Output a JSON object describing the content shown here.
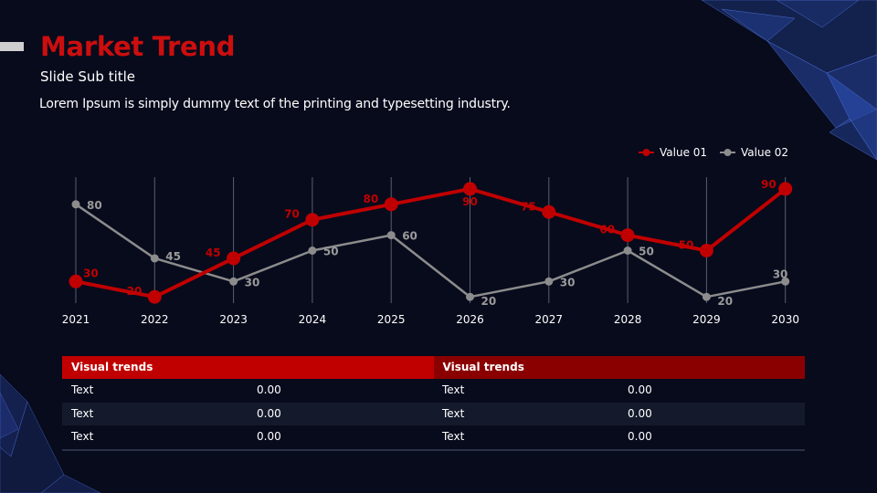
{
  "slide": {
    "title": "Market Trend",
    "subtitle": "Slide Sub title",
    "description": "Lorem Ipsum is simply dummy text of the printing and typesetting industry."
  },
  "colors": {
    "background": "#070b1c",
    "series1": "#c00000",
    "series2": "#8c8c8c",
    "title": "#cc0e0e"
  },
  "chart_data": {
    "type": "line",
    "categories": [
      "2021",
      "2022",
      "2023",
      "2024",
      "2025",
      "2026",
      "2027",
      "2028",
      "2029",
      "2030"
    ],
    "series": [
      {
        "name": "Value 01",
        "values": [
          30,
          20,
          45,
          70,
          80,
          90,
          75,
          60,
          50,
          90
        ],
        "color": "#c00000"
      },
      {
        "name": "Value 02",
        "values": [
          80,
          45,
          30,
          50,
          60,
          20,
          30,
          50,
          20,
          30
        ],
        "color": "#8c8c8c"
      }
    ],
    "ylim": [
      0,
      100
    ],
    "grid": "vertical",
    "legend_position": "top-right",
    "data_labels": true
  },
  "table": {
    "headers": [
      "Visual trends",
      "Visual trends"
    ],
    "rows": [
      [
        "Text",
        "0.00",
        "Text",
        "0.00"
      ],
      [
        "Text",
        "0.00",
        "Text",
        "0.00"
      ],
      [
        "Text",
        "0.00",
        "Text",
        "0.00"
      ]
    ]
  }
}
